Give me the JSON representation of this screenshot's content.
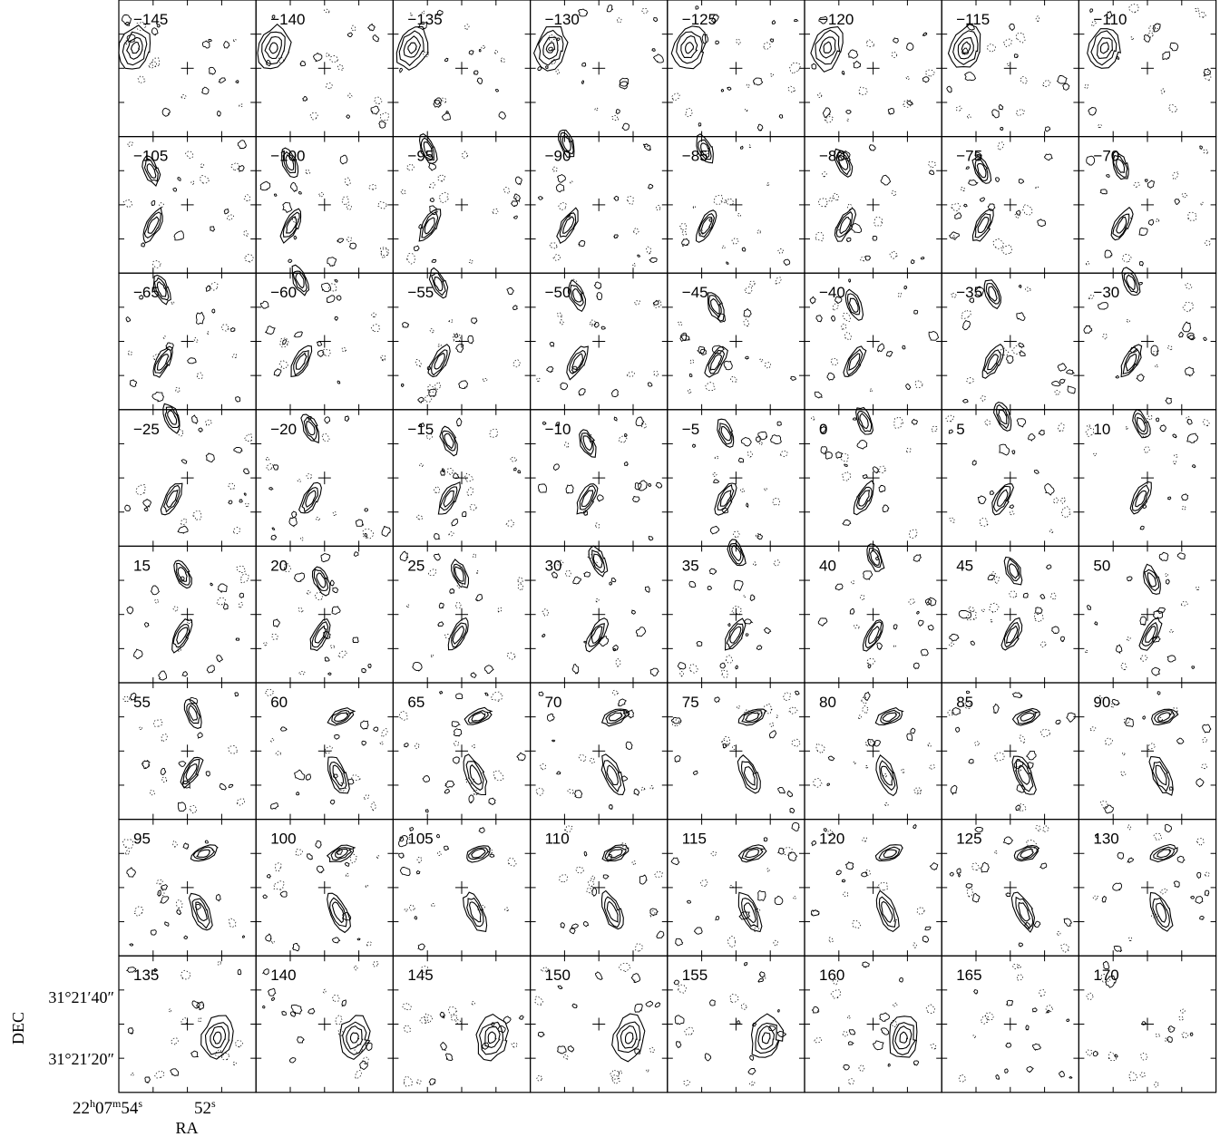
{
  "chart_data": {
    "type": "contour",
    "description_note": "",
    "panel_grid": {
      "rows": 8,
      "columns": 8
    },
    "channel_labels": [
      "−145",
      "−140",
      "−135",
      "−130",
      "−125",
      "−120",
      "−115",
      "−110",
      "−105",
      "−100",
      "−95",
      "−90",
      "−85",
      "−80",
      "−75",
      "−70",
      "−65",
      "−60",
      "−55",
      "−50",
      "−45",
      "−40",
      "−35",
      "−30",
      "−25",
      "−20",
      "−15",
      "−10",
      "−5",
      "0",
      "5",
      "10",
      "15",
      "20",
      "25",
      "30",
      "35",
      "40",
      "45",
      "50",
      "55",
      "60",
      "65",
      "70",
      "75",
      "80",
      "85",
      "90",
      "95",
      "100",
      "105",
      "110",
      "115",
      "120",
      "125",
      "130",
      "135",
      "140",
      "145",
      "150",
      "155",
      "160",
      "165",
      "170"
    ],
    "channel_velocities": [
      -145,
      -140,
      -135,
      -130,
      -125,
      -120,
      -115,
      -110,
      -105,
      -100,
      -95,
      -90,
      -85,
      -80,
      -75,
      -70,
      -65,
      -60,
      -55,
      -50,
      -45,
      -40,
      -35,
      -30,
      -25,
      -20,
      -15,
      -10,
      -5,
      0,
      5,
      10,
      15,
      20,
      25,
      30,
      35,
      40,
      45,
      50,
      55,
      60,
      65,
      70,
      75,
      80,
      85,
      90,
      95,
      100,
      105,
      110,
      115,
      120,
      125,
      130,
      135,
      140,
      145,
      150,
      155,
      160,
      165,
      170
    ],
    "xlabel": "RA",
    "ylabel": "DEC",
    "x_ticks": [
      {
        "base": "22",
        "sup1": "h",
        "mid": "07",
        "sup2": "m",
        "tail": "54",
        "sup3": "s"
      },
      {
        "base": "52",
        "sup1": "s"
      }
    ],
    "y_ticks": [
      "31°21′40″",
      "31°21′20″"
    ],
    "grid": false,
    "center_marker": "cross"
  }
}
